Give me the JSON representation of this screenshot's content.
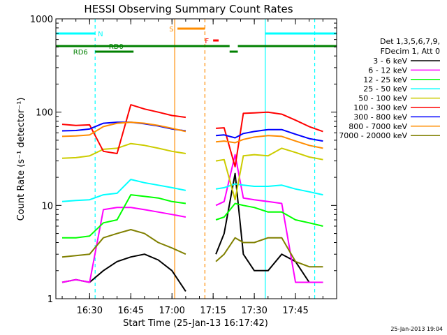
{
  "chart_data": {
    "type": "line",
    "title": "HESSI Observing Summary Count Rates",
    "xlabel": "Start Time (25-Jan-13 16:17:42)",
    "ylabel": "Count Rate (s⁻¹ detector⁻¹)",
    "x_range": [
      "16:17:42",
      "18:00:00"
    ],
    "x_ticks": [
      "16:30",
      "16:45",
      "17:00",
      "17:15",
      "17:30",
      "17:45"
    ],
    "ylim": [
      1,
      1000
    ],
    "yscale": "log",
    "y_ticks": [
      {
        "value": 1,
        "label": "1"
      },
      {
        "value": 10,
        "label": "10"
      },
      {
        "value": 100,
        "label": "100"
      },
      {
        "value": 1000,
        "label": "1000"
      }
    ],
    "legend_header": [
      "Det 1,3,5,6,7,9,",
      "FDecim 1, Att 0"
    ],
    "legend_position": "right",
    "footer": "25-Jan-2013 19:04",
    "series": [
      {
        "name": "3 - 6 keV",
        "color": "#000000",
        "values": [
          1.5,
          1.6,
          1.5,
          2.0,
          2.5,
          2.8,
          3.0,
          2.6,
          2.0,
          1.2,
          null,
          null,
          null,
          null,
          3.0,
          5.0,
          22.0,
          3.0,
          2.0,
          2.0,
          3.0,
          2.5,
          1.5,
          1.5
        ]
      },
      {
        "name": "6 - 12 keV",
        "color": "#ff00ff",
        "values": [
          1.5,
          1.6,
          1.5,
          9.0,
          9.5,
          9.5,
          9.0,
          8.5,
          8.0,
          7.5,
          null,
          null,
          null,
          null,
          10.0,
          11.0,
          35.0,
          12.0,
          11.5,
          11.0,
          10.5,
          1.5,
          1.5,
          1.5
        ]
      },
      {
        "name": "12 - 25 keV",
        "color": "#00ff00",
        "values": [
          4.5,
          4.5,
          4.7,
          6.5,
          7.0,
          13.0,
          12.5,
          12.0,
          11.0,
          10.5,
          null,
          null,
          null,
          null,
          7.0,
          7.5,
          10.5,
          10.0,
          9.5,
          8.5,
          8.5,
          7.0,
          6.5,
          6.0
        ]
      },
      {
        "name": "25 - 50 keV",
        "color": "#00ffff",
        "values": [
          11.0,
          11.3,
          11.5,
          13.0,
          13.5,
          19.0,
          17.5,
          16.5,
          15.5,
          14.5,
          null,
          null,
          null,
          null,
          15.0,
          15.5,
          17.0,
          16.5,
          16.0,
          16.0,
          16.5,
          15.0,
          14.0,
          13.0
        ]
      },
      {
        "name": "50 - 100 keV",
        "color": "#cccc00",
        "values": [
          32.0,
          32.5,
          34.0,
          40.0,
          41.0,
          46.0,
          44.0,
          41.0,
          38.0,
          36.0,
          null,
          null,
          null,
          null,
          30.0,
          31.0,
          11.5,
          34.0,
          35.0,
          34.0,
          41.0,
          37.0,
          33.0,
          31.0
        ]
      },
      {
        "name": "100 - 300 keV",
        "color": "#ff0000",
        "values": [
          74.0,
          72.0,
          73.0,
          38.0,
          36.0,
          120.0,
          108.0,
          100.0,
          92.0,
          88.0,
          null,
          null,
          null,
          null,
          67.0,
          68.0,
          26.0,
          97.0,
          98.0,
          100.0,
          95.0,
          82.0,
          70.0,
          62.0
        ]
      },
      {
        "name": "300 - 800 keV",
        "color": "#0000ff",
        "values": [
          63.0,
          63.5,
          66.0,
          76.0,
          78.0,
          78.0,
          75.0,
          71.0,
          66.0,
          63.0,
          null,
          null,
          null,
          null,
          56.0,
          57.0,
          53.0,
          59.0,
          62.0,
          65.0,
          65.0,
          58.0,
          52.0,
          49.0
        ]
      },
      {
        "name": "800 - 7000 keV",
        "color": "#ff8c00",
        "values": [
          55.0,
          55.5,
          57.0,
          70.0,
          76.0,
          78.0,
          76.0,
          72.0,
          67.0,
          62.0,
          null,
          null,
          null,
          null,
          48.0,
          49.0,
          47.0,
          51.0,
          54.0,
          56.0,
          55.0,
          49.0,
          44.0,
          41.0
        ]
      },
      {
        "name": "7000 - 20000 keV",
        "color": "#808000",
        "values": [
          2.8,
          2.9,
          3.0,
          4.5,
          5.0,
          5.5,
          5.0,
          4.0,
          3.5,
          3.0,
          null,
          null,
          null,
          null,
          2.5,
          3.0,
          4.5,
          4.0,
          4.0,
          4.5,
          4.5,
          2.5,
          2.2,
          2.2
        ]
      }
    ],
    "x": [
      "16:20",
      "16:25",
      "16:30",
      "16:35",
      "16:40",
      "16:45",
      "16:50",
      "16:55",
      "17:00",
      "17:05",
      "17:10",
      "17:13",
      "17:14",
      "17:15",
      "17:16",
      "17:19",
      "17:23",
      "17:26",
      "17:30",
      "17:35",
      "17:40",
      "17:45",
      "17:50",
      "17:55"
    ],
    "annotations": [
      {
        "label": "N",
        "color": "#00ffff"
      },
      {
        "label": "RD0",
        "color": "#008000"
      },
      {
        "label": "RD6",
        "color": "#008000"
      },
      {
        "label": "S",
        "color": "#ff8c00"
      },
      {
        "label": "F",
        "color": "#ff0000"
      }
    ],
    "vertical_markers": [
      {
        "time": "16:32",
        "color": "#00ffff",
        "style": "dashed"
      },
      {
        "time": "17:34",
        "color": "#00ffff",
        "style": "solid"
      },
      {
        "time": "17:52",
        "color": "#00ffff",
        "style": "dashed"
      },
      {
        "time": "17:01",
        "color": "#ff8c00",
        "style": "solid"
      },
      {
        "time": "17:12",
        "color": "#ff8c00",
        "style": "dashed"
      }
    ]
  }
}
